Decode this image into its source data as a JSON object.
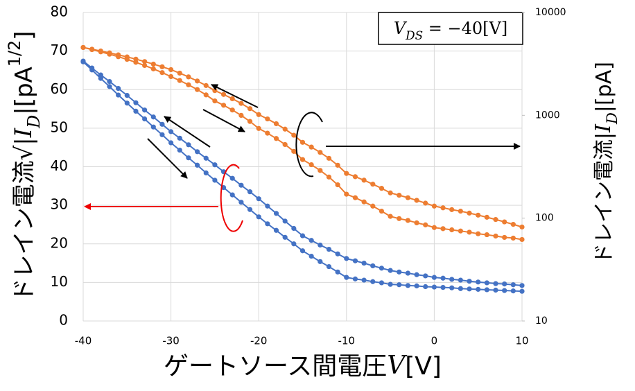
{
  "chart_data": {
    "type": "line",
    "x": [
      -40,
      -39,
      -38,
      -37,
      -36,
      -35,
      -34,
      -33,
      -32,
      -31,
      -30,
      -29,
      -28,
      -27,
      -26,
      -25,
      -24,
      -23,
      -22,
      -21,
      -20,
      -19,
      -18,
      -17,
      -16,
      -15,
      -14,
      -13,
      -12,
      -11,
      -10,
      -9,
      -8,
      -7,
      -6,
      -5,
      -4,
      -3,
      -2,
      -1,
      0,
      1,
      2,
      3,
      4,
      5,
      6,
      7,
      8,
      9,
      10
    ],
    "xlim": [
      -40,
      10
    ],
    "xticks": [
      -40,
      -30,
      -20,
      -10,
      0,
      10
    ],
    "ylim": [
      0,
      80
    ],
    "yticks": [
      0,
      10,
      20,
      30,
      40,
      50,
      60,
      70,
      80
    ],
    "y2lim": [
      10,
      10000
    ],
    "y2ticks": [
      10,
      100,
      1000,
      10000
    ],
    "y2log": true,
    "grid": true,
    "xlabel": [
      {
        "t": "ゲートソース間電圧"
      },
      {
        "t": "V",
        "italic": true
      },
      {
        "t": "[V]"
      }
    ],
    "ylabel": [
      {
        "t": "ドレイン電流√|"
      },
      {
        "t": "I",
        "italic": true
      },
      {
        "t": "D",
        "italic": true,
        "sub": true
      },
      {
        "t": "|[pA"
      },
      {
        "t": "1/2",
        "sup": true
      },
      {
        "t": "]"
      }
    ],
    "y2label": [
      {
        "t": "ドレイン電流|"
      },
      {
        "t": "I",
        "italic": true
      },
      {
        "t": "D",
        "italic": true,
        "sub": true
      },
      {
        "t": "|[pA]"
      }
    ],
    "annotation": [
      {
        "t": "V",
        "italic": true
      },
      {
        "t": "DS",
        "italic": true,
        "sub": true
      },
      {
        "t": " = −40[V]"
      }
    ],
    "series": [
      {
        "color": "#4472c4",
        "values": [
          67.4,
          65.6,
          63.8,
          62.1,
          60.3,
          58.5,
          56.6,
          54.7,
          52.9,
          51.0,
          49.1,
          47.4,
          45.7,
          43.9,
          42.2,
          40.5,
          38.7,
          37.0,
          35.2,
          33.5,
          31.7,
          29.8,
          27.9,
          25.9,
          24.0,
          22.1,
          20.9,
          19.7,
          18.6,
          17.4,
          16.2,
          15.6,
          15.0,
          14.3,
          13.7,
          13.1,
          12.7,
          12.4,
          12.0,
          11.7,
          11.3,
          11.1,
          10.8,
          10.6,
          10.3,
          10.1,
          9.9,
          9.7,
          9.6,
          9.4,
          9.2
        ]
      },
      {
        "color": "#4472c4",
        "values": [
          67.2,
          65.1,
          62.9,
          60.8,
          58.6,
          56.5,
          54.4,
          52.4,
          50.3,
          48.3,
          46.2,
          44.3,
          42.3,
          40.4,
          38.4,
          36.5,
          34.6,
          32.7,
          30.8,
          28.9,
          27.0,
          25.2,
          23.5,
          21.7,
          20.0,
          18.2,
          16.8,
          15.4,
          14.1,
          12.7,
          11.3,
          10.9,
          10.6,
          10.2,
          9.9,
          9.5,
          9.4,
          9.2,
          9.1,
          8.9,
          8.8,
          8.7,
          8.6,
          8.4,
          8.3,
          8.2,
          8.1,
          8.0,
          7.9,
          7.8,
          7.7
        ]
      },
      {
        "color": "#ed7d31",
        "axis": "y2",
        "values": [
          4570,
          4396,
          4222,
          4048,
          3874,
          3700,
          3516,
          3332,
          3148,
          2964,
          2780,
          2572,
          2364,
          2156,
          1948,
          1740,
          1595,
          1450,
          1306,
          1161,
          1016,
          922,
          828,
          734,
          640,
          546,
          491,
          436,
          382,
          327,
          272,
          253,
          234,
          214,
          195,
          176,
          167,
          158,
          149,
          140,
          131,
          126,
          121,
          117,
          112,
          107,
          102,
          97,
          92,
          87,
          82
        ]
      },
      {
        "color": "#ed7d31",
        "axis": "y2",
        "values": [
          4570,
          4356,
          4142,
          3928,
          3714,
          3500,
          3276,
          3052,
          2828,
          2604,
          2380,
          2180,
          1980,
          1780,
          1580,
          1380,
          1253,
          1126,
          999,
          872,
          745,
          670,
          595,
          520,
          446,
          371,
          331,
          291,
          251,
          211,
          171,
          158,
          144,
          131,
          117,
          104,
          99,
          95,
          90,
          86,
          81,
          79,
          77,
          75,
          73,
          70.5,
          69,
          67,
          65,
          64,
          62
        ]
      }
    ]
  }
}
